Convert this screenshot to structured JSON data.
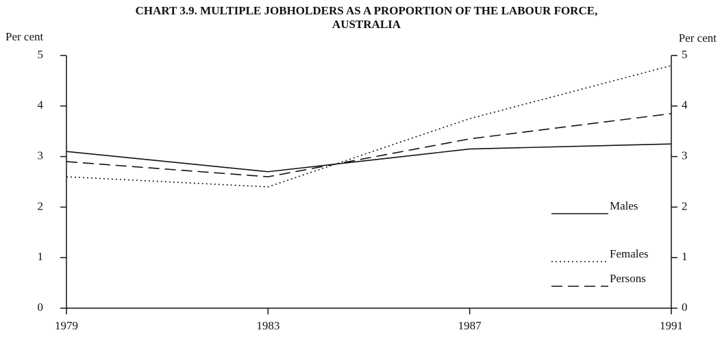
{
  "chart_data": {
    "type": "line",
    "title": [
      "CHART 3.9. MULTIPLE JOBHOLDERS AS A PROPORTION OF THE LABOUR FORCE,",
      "AUSTRALIA"
    ],
    "ylabel": "Per cent",
    "y2label": "Per cent",
    "categories": [
      "1979",
      "1983",
      "1987",
      "1991"
    ],
    "series": [
      {
        "name": "Males",
        "color": "#111111",
        "dash": "solid",
        "values": [
          3.1,
          2.7,
          3.15,
          3.25
        ]
      },
      {
        "name": "Females",
        "color": "#111111",
        "dash": "dotted",
        "values": [
          2.6,
          2.4,
          3.75,
          4.8
        ]
      },
      {
        "name": "Persons",
        "color": "#111111",
        "dash": "dashed",
        "values": [
          2.9,
          2.6,
          3.35,
          3.85
        ]
      }
    ],
    "ylim": [
      0,
      5
    ],
    "yticks": [
      0,
      1,
      2,
      3,
      4,
      5
    ],
    "y2lim": [
      0,
      5
    ],
    "y2ticks": [
      0,
      1,
      2,
      3,
      4,
      5
    ],
    "grid": false,
    "legend": "lower right"
  }
}
